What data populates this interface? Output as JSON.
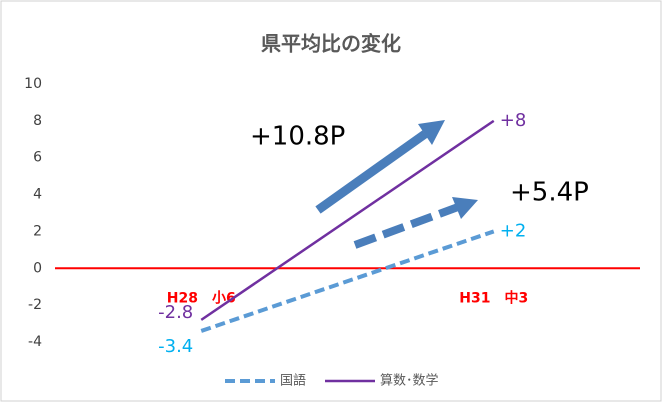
{
  "chart_data": {
    "type": "line",
    "title": "県平均比の変化",
    "categories": [
      "H28　小6",
      "H31　中3"
    ],
    "series": [
      {
        "name": "国語",
        "color": "#5b9bd5",
        "dashed": true,
        "label_color": "#00b0f0",
        "values": [
          -3.4,
          2
        ],
        "value_labels": [
          "-3.4",
          "+2"
        ]
      },
      {
        "name": "算数･数学",
        "color": "#7030a0",
        "dashed": false,
        "label_color": "#7030a0",
        "values": [
          -2.8,
          8
        ],
        "value_labels": [
          "-2.8",
          "+8"
        ]
      }
    ],
    "ylim": [
      -4,
      10
    ],
    "yticks": [
      -4,
      -2,
      0,
      2,
      4,
      6,
      8,
      10
    ],
    "zero_line_color": "#ff0000",
    "category_label_color": "#ff0000",
    "annotations": [
      "+10.8P",
      "+5.4P"
    ],
    "legend": "bottom"
  }
}
